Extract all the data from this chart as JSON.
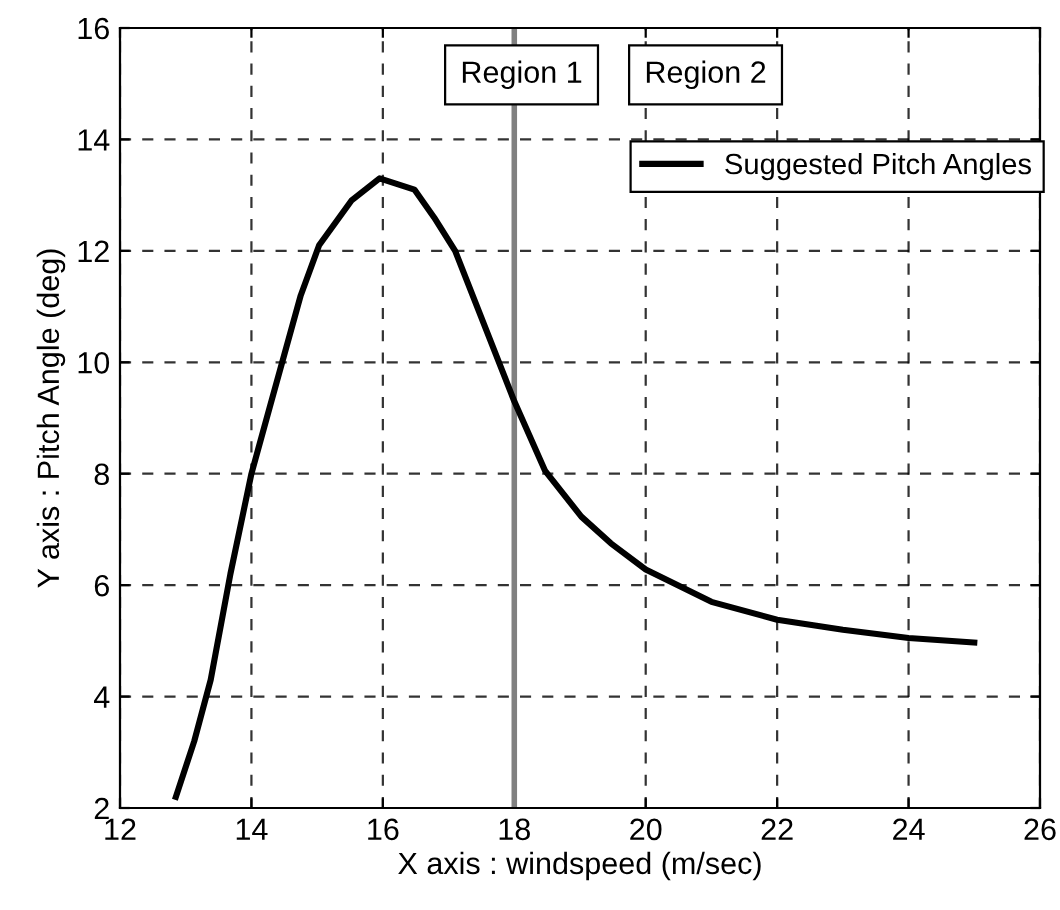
{
  "chart_data": {
    "type": "line",
    "xlabel": "X axis : windspeed (m/sec)",
    "ylabel": "Y axis : Pitch Angle (deg)",
    "xlim": [
      12,
      26
    ],
    "xticks": [
      12,
      14,
      16,
      18,
      20,
      22,
      24,
      26
    ],
    "ylim": [
      2,
      16
    ],
    "yticks": [
      2,
      4,
      6,
      8,
      10,
      12,
      14,
      16
    ],
    "grid": true,
    "legend": "top right",
    "line_style": "solid",
    "marker": "none",
    "ref_lines": [
      {
        "axis": "x",
        "value": 18,
        "color": "#808080"
      }
    ],
    "annotations": [
      "Region 1",
      "Region 2"
    ],
    "series": [
      {
        "name": "Suggested Pitch Angles",
        "color": "#000000",
        "x": [
          12.85,
          13.13,
          13.38,
          13.68,
          14.0,
          14.28,
          14.75,
          15.03,
          15.52,
          15.95,
          16.48,
          16.78,
          17.1,
          18.0,
          18.47,
          19.02,
          19.47,
          20.0,
          21.0,
          22.0,
          23.0,
          24.0,
          25.0
        ],
        "values": [
          2.2,
          3.2,
          4.3,
          6.2,
          8.0,
          9.2,
          11.2,
          12.1,
          12.9,
          13.3,
          13.1,
          12.6,
          12.0,
          9.3,
          8.05,
          7.23,
          6.75,
          6.28,
          5.7,
          5.38,
          5.2,
          5.05,
          4.97
        ]
      }
    ]
  }
}
